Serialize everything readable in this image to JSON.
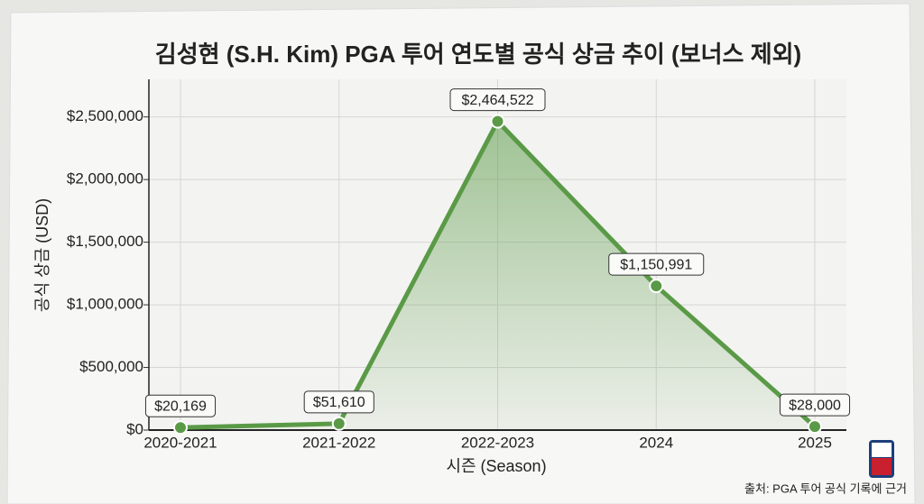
{
  "chart_data": {
    "type": "line",
    "title": "김성현 (S.H. Kim) PGA 투어 연도별 공식 상금 추이 (보너스 제외)",
    "x_label": "시즌 (Season)",
    "y_label": "공식 상금 (USD)",
    "categories": [
      "2020-2021",
      "2021-2022",
      "2022-2023",
      "2024",
      "2025"
    ],
    "series": [
      {
        "name": "공식 상금",
        "color": "#5a9a47",
        "values": [
          20169,
          51610,
          2464522,
          1150991,
          28000
        ],
        "value_labels": [
          "$20,169",
          "$51,610",
          "$2,464,522",
          "$1,150,991",
          "$28,000"
        ]
      }
    ],
    "ylim": [
      0,
      2800000
    ],
    "yticks": [
      {
        "value": 0,
        "label": "$0"
      },
      {
        "value": 500000,
        "label": "$500,000"
      },
      {
        "value": 1000000,
        "label": "$1,000,000"
      },
      {
        "value": 1500000,
        "label": "$1,500,000"
      },
      {
        "value": 2000000,
        "label": "$2,000,000"
      },
      {
        "value": 2500000,
        "label": "$2,500,000"
      }
    ],
    "grid": true,
    "source": "출처: PGA 투어 공식 기록에 근거"
  }
}
